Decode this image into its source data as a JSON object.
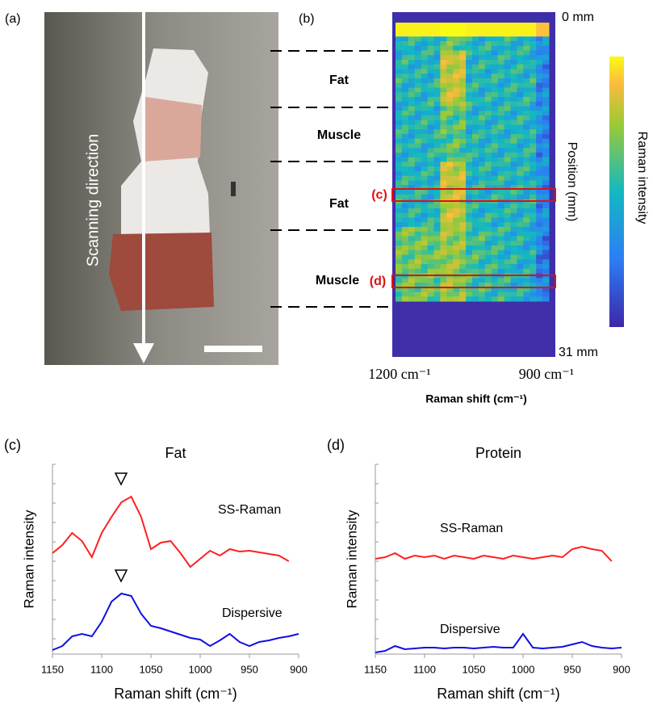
{
  "panel_a": {
    "label": "(a)",
    "text": "Scanning direction"
  },
  "panel_b": {
    "label": "(b)",
    "regions": [
      "Fat",
      "Muscle",
      "Fat",
      "Muscle"
    ],
    "box_labels": [
      "(c)",
      "(d)"
    ],
    "top_label": "0 mm",
    "bottom_label": "31 mm",
    "position_label": "Position (mm)",
    "colorbar_label": "Raman intensity",
    "x_left": "1200 cm⁻¹",
    "x_right": "900 cm⁻¹",
    "xlabel": "Raman shift (cm⁻¹)"
  },
  "chart_data": [
    {
      "type": "line",
      "panel_label": "(c)",
      "title": "Fat",
      "xlabel": "Raman shift (cm⁻¹)",
      "ylabel": "Raman intensity",
      "x": [
        1150,
        1140,
        1130,
        1120,
        1110,
        1100,
        1090,
        1080,
        1070,
        1060,
        1050,
        1040,
        1030,
        1020,
        1010,
        1000,
        990,
        980,
        970,
        960,
        950,
        940,
        930,
        920,
        910,
        900
      ],
      "xlim": [
        1150,
        900
      ],
      "xticks": [
        1150,
        1100,
        1050,
        1000,
        950,
        900
      ],
      "ylim": [
        0,
        235
      ],
      "series": [
        {
          "name": "SS-Raman",
          "color": "#ff2020",
          "values": [
            125,
            135,
            150,
            140,
            120,
            150,
            170,
            188,
            195,
            170,
            130,
            138,
            140,
            125,
            108,
            118,
            128,
            122,
            130,
            127,
            128,
            126,
            124,
            122,
            115,
            null
          ]
        },
        {
          "name": "Dispersive",
          "color": "#1010e0",
          "values": [
            5,
            10,
            22,
            25,
            22,
            40,
            65,
            75,
            72,
            50,
            35,
            32,
            28,
            24,
            20,
            18,
            10,
            17,
            25,
            15,
            10,
            15,
            17,
            20,
            22,
            25
          ]
        }
      ]
    },
    {
      "type": "line",
      "panel_label": "(d)",
      "title": "Protein",
      "xlabel": "Raman shift (cm⁻¹)",
      "ylabel": "Raman intensity",
      "x": [
        1150,
        1140,
        1130,
        1120,
        1110,
        1100,
        1090,
        1080,
        1070,
        1060,
        1050,
        1040,
        1030,
        1020,
        1010,
        1000,
        990,
        980,
        970,
        960,
        950,
        940,
        930,
        920,
        910,
        900
      ],
      "xlim": [
        1150,
        900
      ],
      "xticks": [
        1150,
        1100,
        1050,
        1000,
        950,
        900
      ],
      "ylim": [
        0,
        235
      ],
      "series": [
        {
          "name": "SS-Raman",
          "color": "#ff2020",
          "values": [
            118,
            120,
            125,
            118,
            122,
            120,
            122,
            118,
            122,
            120,
            118,
            122,
            120,
            118,
            122,
            120,
            118,
            120,
            122,
            120,
            130,
            133,
            130,
            128,
            115,
            null
          ]
        },
        {
          "name": "Dispersive",
          "color": "#1010e0",
          "values": [
            2,
            4,
            10,
            6,
            7,
            8,
            8,
            7,
            8,
            8,
            7,
            8,
            9,
            8,
            8,
            25,
            8,
            7,
            8,
            9,
            12,
            15,
            10,
            8,
            7,
            8
          ]
        }
      ]
    }
  ]
}
